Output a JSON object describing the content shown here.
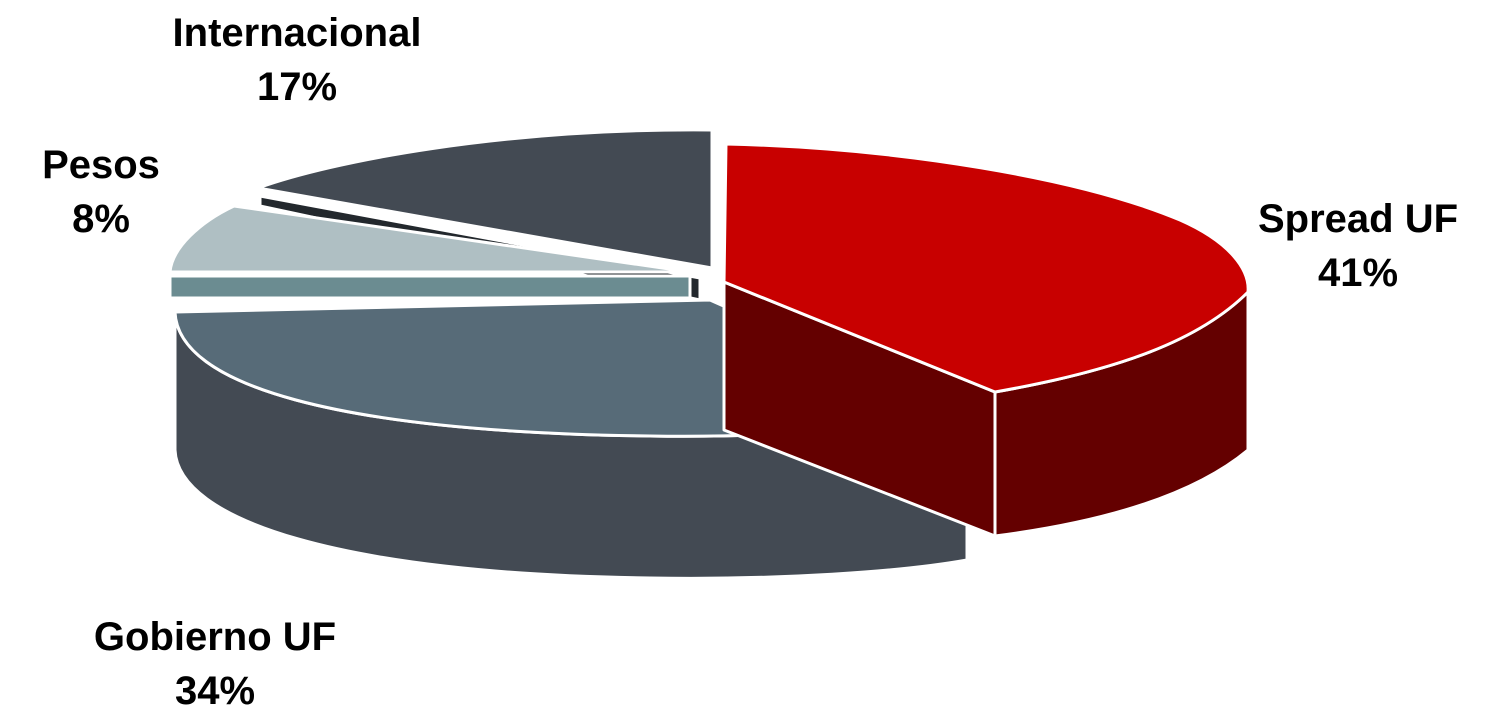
{
  "chart_data": {
    "type": "pie",
    "title": "",
    "slices": [
      {
        "name": "Spread UF",
        "value": 41,
        "label": "41%",
        "color": "#c80000",
        "side_color": "#640000"
      },
      {
        "name": "Gobierno UF",
        "value": 34,
        "label": "34%",
        "color": "#576b78",
        "side_color": "#434a53"
      },
      {
        "name": "Pesos",
        "value": 8,
        "label": "8%",
        "color": "#afbfc3",
        "side_color": "#6b8c91"
      },
      {
        "name": "Internacional",
        "value": 17,
        "label": "17%",
        "color": "#434a53",
        "side_color": "#23282d"
      }
    ],
    "style": "3d-exploded",
    "legend": "none"
  }
}
